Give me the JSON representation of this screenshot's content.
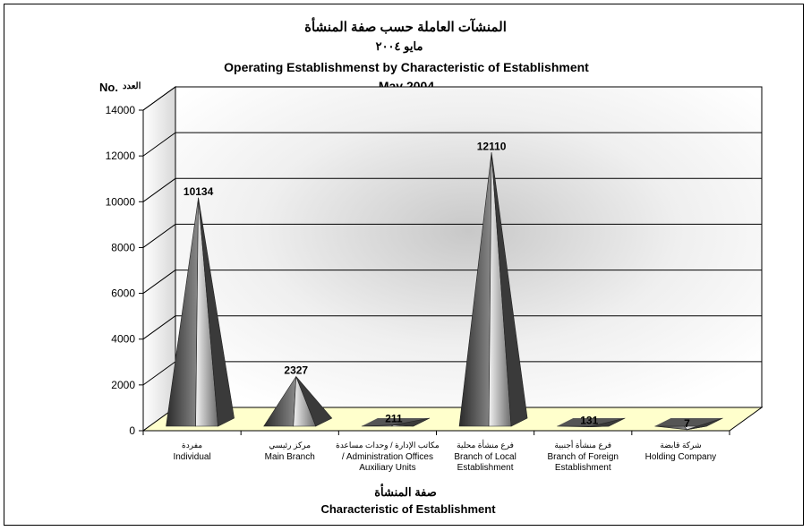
{
  "chart_data": {
    "type": "bar",
    "title_ar": "المنشآت العاملة حسب صفة المنشأة",
    "subtitle_ar": "مايو ٢٠٠٤",
    "title": "Operating Establishmenst by Characteristic of Establishment",
    "subtitle": "May 2004",
    "ylabel": "No.",
    "ylabel_ar": "العدد",
    "xlabel_ar": "صفة المنشأة",
    "xlabel": "Characteristic of Establishment",
    "ylim": [
      0,
      14000
    ],
    "yticks": [
      0,
      2000,
      4000,
      6000,
      8000,
      10000,
      12000,
      14000
    ],
    "grid": true,
    "categories": [
      {
        "ar": "مفردة",
        "en": [
          "Individual"
        ]
      },
      {
        "ar": "مركز رئيسي",
        "en": [
          "Main Branch"
        ]
      },
      {
        "ar": "مكاتب الإدارة / وحدات مساعدة",
        "en": [
          "/ Administration Offices",
          "Auxiliary Units"
        ]
      },
      {
        "ar": "فرع منشأة محلية",
        "en": [
          "Branch of Local",
          "Establishment"
        ]
      },
      {
        "ar": "فرع منشأة أجنبية",
        "en": [
          "Branch of Foreign",
          "Establishment"
        ]
      },
      {
        "ar": "شركة قابضة",
        "en": [
          "Holding Company"
        ]
      }
    ],
    "values": [
      10134,
      2327,
      211,
      12110,
      131,
      7
    ],
    "data_labels": [
      "10134",
      "2327",
      "211",
      "12110",
      "131",
      "7"
    ],
    "colors": {
      "floor": "#ffffcc",
      "grid": "#000000",
      "mark_dark": "#333333",
      "mark_light": "#e6e6e6"
    }
  }
}
